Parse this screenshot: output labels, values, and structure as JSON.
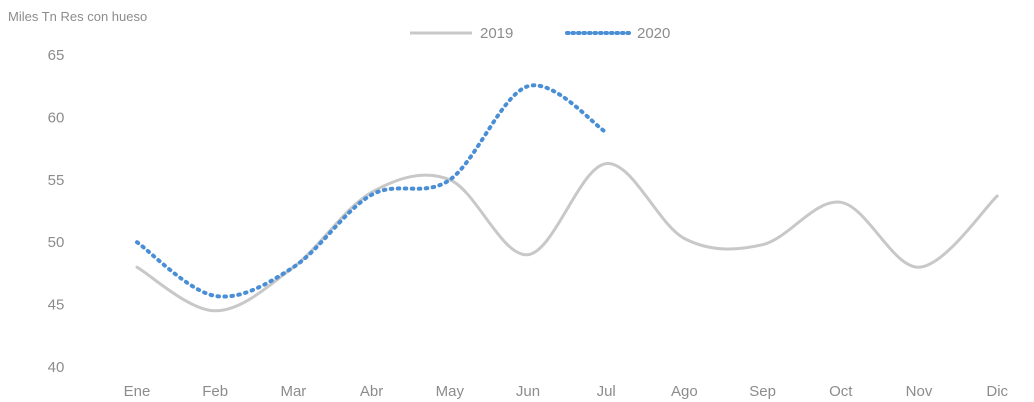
{
  "chart_data": {
    "type": "line",
    "ylabel": "Miles Tn Res con hueso",
    "categories": [
      "Ene",
      "Feb",
      "Mar",
      "Abr",
      "May",
      "Jun",
      "Jul",
      "Ago",
      "Sep",
      "Oct",
      "Nov",
      "Dic"
    ],
    "ylim": [
      40,
      65
    ],
    "yticks": [
      40,
      45,
      50,
      55,
      60,
      65
    ],
    "grid": false,
    "legend": "top-center",
    "series": [
      {
        "name": "2019",
        "color": "#c8c8c8",
        "style": "solid",
        "values": [
          48.0,
          44.5,
          48.0,
          54.0,
          55.0,
          49.0,
          56.3,
          50.3,
          49.8,
          53.2,
          48.0,
          53.7
        ]
      },
      {
        "name": "2020",
        "color": "#4a8fd6",
        "style": "dotted",
        "values": [
          50.0,
          45.7,
          48.0,
          53.8,
          55.0,
          62.5,
          58.8,
          null,
          null,
          null,
          null,
          null
        ]
      }
    ]
  }
}
